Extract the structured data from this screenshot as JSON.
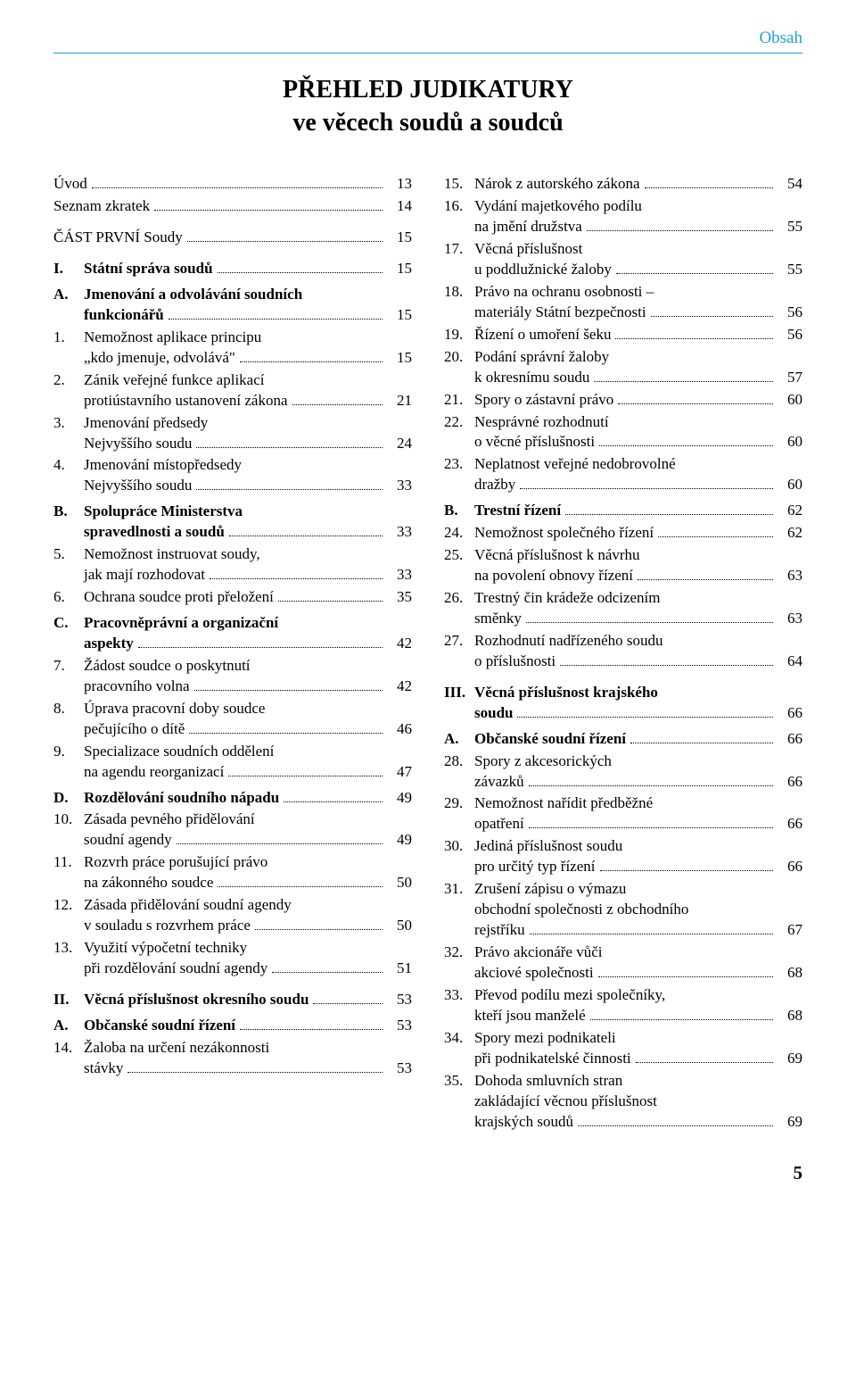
{
  "colors": {
    "accent": "#1fa0d8",
    "text": "#000000",
    "background": "#ffffff"
  },
  "running_head": "Obsah",
  "title_line1": "PŘEHLED JUDIKATURY",
  "title_line2": "ve věcech soudů a soudců",
  "page_number": "5",
  "left": [
    {
      "type": "entry",
      "label": "",
      "bold": false,
      "lines": [
        "Úvod"
      ],
      "page": "13"
    },
    {
      "type": "entry",
      "label": "",
      "bold": false,
      "lines": [
        "Seznam zkratek"
      ],
      "page": "14"
    },
    {
      "type": "spacer",
      "size": "md"
    },
    {
      "type": "entry",
      "label": "",
      "bold": false,
      "lines": [
        "ČÁST PRVNÍ Soudy"
      ],
      "page": "15"
    },
    {
      "type": "spacer",
      "size": "md"
    },
    {
      "type": "entry",
      "label": "I.",
      "bold": true,
      "lines": [
        "Státní správa soudů"
      ],
      "page": "15"
    },
    {
      "type": "spacer",
      "size": "sm"
    },
    {
      "type": "entry",
      "label": "A.",
      "bold": true,
      "lines": [
        "Jmenování a odvolávání soudních",
        "funkcionářů"
      ],
      "page": "15"
    },
    {
      "type": "entry",
      "label": "1.",
      "bold": false,
      "indent": true,
      "lines": [
        "Nemožnost aplikace principu",
        "„kdo jmenuje, odvolává\""
      ],
      "page": "15"
    },
    {
      "type": "entry",
      "label": "2.",
      "bold": false,
      "indent": true,
      "lines": [
        "Zánik veřejné funkce aplikací",
        "protiústavního ustanovení zákona"
      ],
      "page": "21"
    },
    {
      "type": "entry",
      "label": "3.",
      "bold": false,
      "indent": true,
      "lines": [
        "Jmenování předsedy",
        "Nejvyššího soudu"
      ],
      "page": "24"
    },
    {
      "type": "entry",
      "label": "4.",
      "bold": false,
      "indent": true,
      "lines": [
        "Jmenování místopředsedy",
        "Nejvyššího soudu"
      ],
      "page": "33"
    },
    {
      "type": "spacer",
      "size": "sm"
    },
    {
      "type": "entry",
      "label": "B.",
      "bold": true,
      "lines": [
        "Spolupráce Ministerstva",
        "spravedlnosti a soudů"
      ],
      "page": "33"
    },
    {
      "type": "entry",
      "label": "5.",
      "bold": false,
      "indent": true,
      "lines": [
        "Nemožnost instruovat soudy,",
        "jak mají rozhodovat"
      ],
      "page": "33"
    },
    {
      "type": "entry",
      "label": "6.",
      "bold": false,
      "indent": true,
      "lines": [
        "Ochrana soudce proti přeložení"
      ],
      "page": "35"
    },
    {
      "type": "spacer",
      "size": "sm"
    },
    {
      "type": "entry",
      "label": "C.",
      "bold": true,
      "lines": [
        "Pracovněprávní a organizační",
        "aspekty"
      ],
      "page": "42"
    },
    {
      "type": "entry",
      "label": "7.",
      "bold": false,
      "indent": true,
      "lines": [
        "Žádost soudce o poskytnutí",
        "pracovního volna"
      ],
      "page": "42"
    },
    {
      "type": "entry",
      "label": "8.",
      "bold": false,
      "indent": true,
      "lines": [
        "Úprava pracovní doby soudce",
        "pečujícího o dítě"
      ],
      "page": "46"
    },
    {
      "type": "entry",
      "label": "9.",
      "bold": false,
      "indent": true,
      "lines": [
        "Specializace soudních oddělení",
        "na agendu reorganizací"
      ],
      "page": "47"
    },
    {
      "type": "spacer",
      "size": "sm"
    },
    {
      "type": "entry",
      "label": "D.",
      "bold": true,
      "lines": [
        "Rozdělování soudního nápadu"
      ],
      "page": "49"
    },
    {
      "type": "entry",
      "label": "10.",
      "bold": false,
      "indent": true,
      "lines": [
        "Zásada pevného přidělování",
        "soudní agendy"
      ],
      "page": "49"
    },
    {
      "type": "entry",
      "label": "11.",
      "bold": false,
      "indent": true,
      "lines": [
        "Rozvrh práce porušující právo",
        "na zákonného soudce"
      ],
      "page": "50"
    },
    {
      "type": "entry",
      "label": "12.",
      "bold": false,
      "indent": true,
      "lines": [
        "Zásada přidělování soudní agendy",
        "v souladu s rozvrhem práce"
      ],
      "page": "50"
    },
    {
      "type": "entry",
      "label": "13.",
      "bold": false,
      "indent": true,
      "lines": [
        "Využití výpočetní techniky",
        "při rozdělování soudní agendy"
      ],
      "page": "51"
    },
    {
      "type": "spacer",
      "size": "md"
    },
    {
      "type": "entry",
      "label": "II.",
      "bold": true,
      "lines": [
        "Věcná příslušnost okresního soudu"
      ],
      "page": "53"
    },
    {
      "type": "spacer",
      "size": "sm"
    },
    {
      "type": "entry",
      "label": "A.",
      "bold": true,
      "lines": [
        "Občanské soudní řízení"
      ],
      "page": "53"
    },
    {
      "type": "entry",
      "label": "14.",
      "bold": false,
      "indent": true,
      "lines": [
        "Žaloba na určení nezákonnosti",
        "stávky"
      ],
      "page": "53"
    }
  ],
  "right": [
    {
      "type": "entry",
      "label": "15.",
      "bold": false,
      "indent": true,
      "lines": [
        "Nárok z autorského zákona"
      ],
      "page": "54"
    },
    {
      "type": "entry",
      "label": "16.",
      "bold": false,
      "indent": true,
      "lines": [
        "Vydání majetkového podílu",
        "na jmění družstva"
      ],
      "page": "55"
    },
    {
      "type": "entry",
      "label": "17.",
      "bold": false,
      "indent": true,
      "lines": [
        "Věcná příslušnost",
        "u poddlužnické žaloby"
      ],
      "page": "55"
    },
    {
      "type": "entry",
      "label": "18.",
      "bold": false,
      "indent": true,
      "lines": [
        "Právo na ochranu osobnosti –",
        "materiály Státní bezpečnosti"
      ],
      "page": "56"
    },
    {
      "type": "entry",
      "label": "19.",
      "bold": false,
      "indent": true,
      "lines": [
        "Řízení o umoření šeku"
      ],
      "page": "56"
    },
    {
      "type": "entry",
      "label": "20.",
      "bold": false,
      "indent": true,
      "lines": [
        "Podání správní žaloby",
        "k okresnímu soudu"
      ],
      "page": "57"
    },
    {
      "type": "entry",
      "label": "21.",
      "bold": false,
      "indent": true,
      "lines": [
        "Spory o zástavní právo"
      ],
      "page": "60"
    },
    {
      "type": "entry",
      "label": "22.",
      "bold": false,
      "indent": true,
      "lines": [
        "Nesprávné rozhodnutí",
        "o věcné příslušnosti"
      ],
      "page": "60"
    },
    {
      "type": "entry",
      "label": "23.",
      "bold": false,
      "indent": true,
      "lines": [
        "Neplatnost veřejné nedobrovolné",
        "dražby"
      ],
      "page": "60"
    },
    {
      "type": "spacer",
      "size": "sm"
    },
    {
      "type": "entry",
      "label": "B.",
      "bold": true,
      "lines": [
        "Trestní řízení"
      ],
      "page": "62"
    },
    {
      "type": "entry",
      "label": "24.",
      "bold": false,
      "indent": true,
      "lines": [
        "Nemožnost společného řízení"
      ],
      "page": "62"
    },
    {
      "type": "entry",
      "label": "25.",
      "bold": false,
      "indent": true,
      "lines": [
        "Věcná příslušnost k návrhu",
        "na povolení obnovy řízení"
      ],
      "page": "63"
    },
    {
      "type": "entry",
      "label": "26.",
      "bold": false,
      "indent": true,
      "lines": [
        "Trestný čin krádeže odcizením",
        "směnky"
      ],
      "page": "63"
    },
    {
      "type": "entry",
      "label": "27.",
      "bold": false,
      "indent": true,
      "lines": [
        "Rozhodnutí nadřízeného soudu",
        "o příslušnosti"
      ],
      "page": "64"
    },
    {
      "type": "spacer",
      "size": "md"
    },
    {
      "type": "entry",
      "label": "III.",
      "bold": true,
      "lines": [
        "Věcná příslušnost krajského",
        "soudu"
      ],
      "page": "66"
    },
    {
      "type": "spacer",
      "size": "sm"
    },
    {
      "type": "entry",
      "label": "A.",
      "bold": true,
      "lines": [
        "Občanské soudní řízení"
      ],
      "page": "66"
    },
    {
      "type": "entry",
      "label": "28.",
      "bold": false,
      "indent": true,
      "lines": [
        "Spory z akcesorických",
        "závazků"
      ],
      "page": "66"
    },
    {
      "type": "entry",
      "label": "29.",
      "bold": false,
      "indent": true,
      "lines": [
        "Nemožnost nařídit předběžné",
        "opatření"
      ],
      "page": "66"
    },
    {
      "type": "entry",
      "label": "30.",
      "bold": false,
      "indent": true,
      "lines": [
        "Jediná příslušnost soudu",
        "pro určitý typ řízení"
      ],
      "page": "66"
    },
    {
      "type": "entry",
      "label": "31.",
      "bold": false,
      "indent": true,
      "lines": [
        "Zrušení zápisu o výmazu",
        "obchodní společnosti z obchodního",
        "rejstříku"
      ],
      "page": "67"
    },
    {
      "type": "entry",
      "label": "32.",
      "bold": false,
      "indent": true,
      "lines": [
        "Právo akcionáře vůči",
        "akciové společnosti"
      ],
      "page": "68"
    },
    {
      "type": "entry",
      "label": "33.",
      "bold": false,
      "indent": true,
      "lines": [
        "Převod podílu mezi společníky,",
        "kteří jsou manželé"
      ],
      "page": "68"
    },
    {
      "type": "entry",
      "label": "34.",
      "bold": false,
      "indent": true,
      "lines": [
        "Spory mezi podnikateli",
        "při podnikatelské činnosti"
      ],
      "page": "69"
    },
    {
      "type": "entry",
      "label": "35.",
      "bold": false,
      "indent": true,
      "lines": [
        "Dohoda smluvních stran",
        "zakládající věcnou příslušnost",
        "krajských soudů"
      ],
      "page": "69"
    }
  ]
}
